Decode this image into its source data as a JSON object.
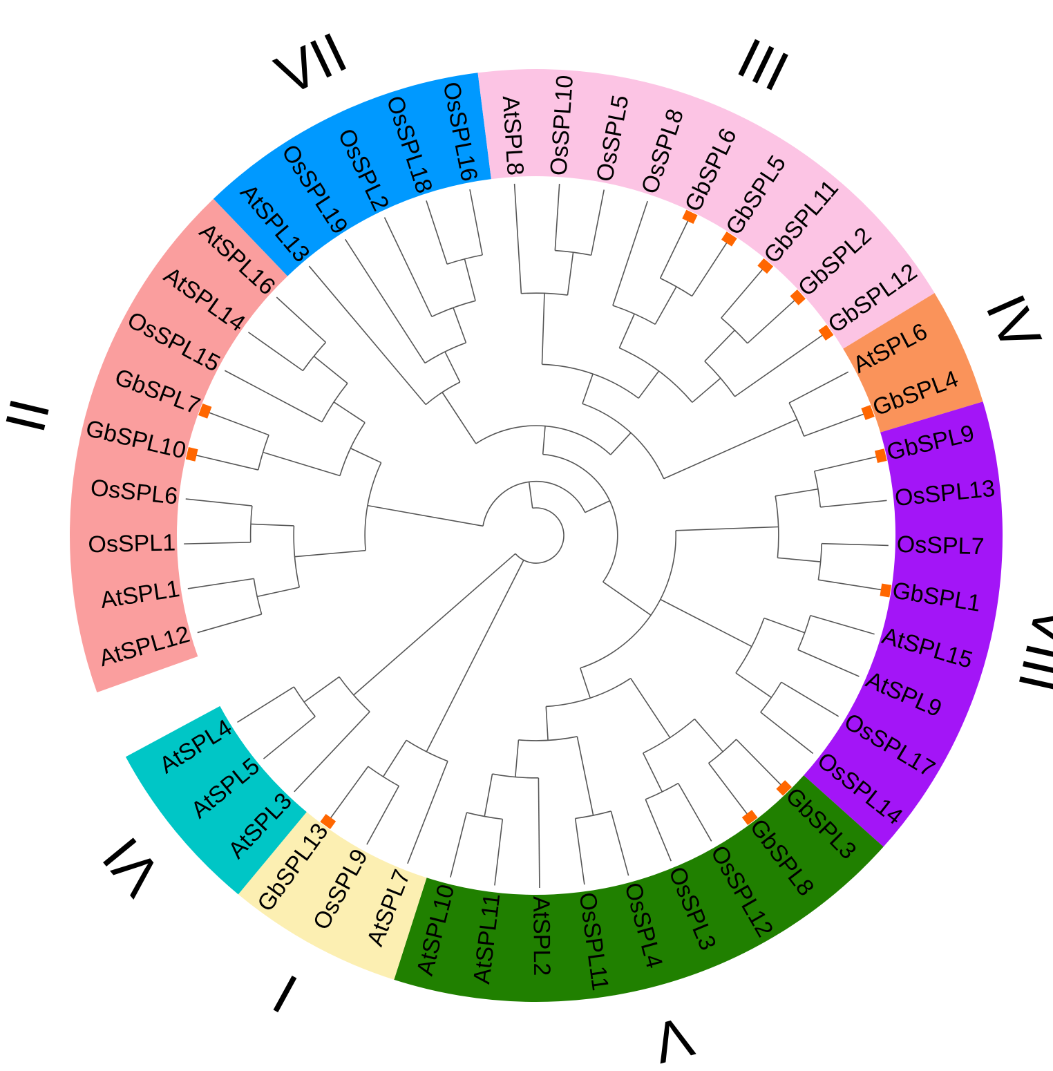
{
  "groups": [
    {
      "id": "I",
      "label": "I",
      "color": "#fcefb2"
    },
    {
      "id": "II",
      "label": "II",
      "color": "#fa9e9e"
    },
    {
      "id": "III",
      "label": "III",
      "color": "#fcc4e4"
    },
    {
      "id": "IV",
      "label": "IV",
      "color": "#fa935a"
    },
    {
      "id": "V",
      "label": "V",
      "color": "#208000"
    },
    {
      "id": "VI",
      "label": "VI",
      "color": "#00c6c6"
    },
    {
      "id": "VII",
      "label": "VII",
      "color": "#0099ff"
    },
    {
      "id": "VIII",
      "label": "VIII",
      "color": "#a315f7"
    }
  ],
  "leaves": [
    {
      "name": "AtSPL12",
      "group": "II",
      "marked": false
    },
    {
      "name": "AtSPL1",
      "group": "II",
      "marked": false
    },
    {
      "name": "OsSPL1",
      "group": "II",
      "marked": false
    },
    {
      "name": "OsSPL6",
      "group": "II",
      "marked": false
    },
    {
      "name": "GbSPL10",
      "group": "II",
      "marked": true
    },
    {
      "name": "GbSPL7",
      "group": "II",
      "marked": true
    },
    {
      "name": "OsSPL15",
      "group": "II",
      "marked": false
    },
    {
      "name": "AtSPL14",
      "group": "II",
      "marked": false
    },
    {
      "name": "AtSPL16",
      "group": "II",
      "marked": false
    },
    {
      "name": "AtSPL13",
      "group": "VII",
      "marked": false
    },
    {
      "name": "OsSPL19",
      "group": "VII",
      "marked": false
    },
    {
      "name": "OsSPL2",
      "group": "VII",
      "marked": false
    },
    {
      "name": "OsSPL18",
      "group": "VII",
      "marked": false
    },
    {
      "name": "OsSPL16",
      "group": "VII",
      "marked": false
    },
    {
      "name": "AtSPL8",
      "group": "III",
      "marked": false
    },
    {
      "name": "OsSPL10",
      "group": "III",
      "marked": false
    },
    {
      "name": "OsSPL5",
      "group": "III",
      "marked": false
    },
    {
      "name": "OsSPL8",
      "group": "III",
      "marked": false
    },
    {
      "name": "GbSPL6",
      "group": "III",
      "marked": true
    },
    {
      "name": "GbSPL5",
      "group": "III",
      "marked": true
    },
    {
      "name": "GbSPL11",
      "group": "III",
      "marked": true
    },
    {
      "name": "GbSPL2",
      "group": "III",
      "marked": true
    },
    {
      "name": "GbSPL12",
      "group": "III",
      "marked": true
    },
    {
      "name": "AtSPL6",
      "group": "IV",
      "marked": false
    },
    {
      "name": "GbSPL4",
      "group": "IV",
      "marked": true
    },
    {
      "name": "GbSPL9",
      "group": "VIII",
      "marked": true
    },
    {
      "name": "OsSPL13",
      "group": "VIII",
      "marked": false
    },
    {
      "name": "OsSPL7",
      "group": "VIII",
      "marked": false
    },
    {
      "name": "GbSPL1",
      "group": "VIII",
      "marked": true
    },
    {
      "name": "AtSPL15",
      "group": "VIII",
      "marked": false
    },
    {
      "name": "AtSPL9",
      "group": "VIII",
      "marked": false
    },
    {
      "name": "OsSPL17",
      "group": "VIII",
      "marked": false
    },
    {
      "name": "OsSPL14",
      "group": "VIII",
      "marked": false
    },
    {
      "name": "GbSPL3",
      "group": "V",
      "marked": true
    },
    {
      "name": "GbSPL8",
      "group": "V",
      "marked": true
    },
    {
      "name": "OsSPL12",
      "group": "V",
      "marked": false
    },
    {
      "name": "OsSPL3",
      "group": "V",
      "marked": false
    },
    {
      "name": "OsSPL4",
      "group": "V",
      "marked": false
    },
    {
      "name": "OsSPL11",
      "group": "V",
      "marked": false
    },
    {
      "name": "AtSPL2",
      "group": "V",
      "marked": false
    },
    {
      "name": "AtSPL11",
      "group": "V",
      "marked": false
    },
    {
      "name": "AtSPL10",
      "group": "V",
      "marked": false
    },
    {
      "name": "AtSPL7",
      "group": "I",
      "marked": false
    },
    {
      "name": "OsSPL9",
      "group": "I",
      "marked": false
    },
    {
      "name": "GbSPL13",
      "group": "I",
      "marked": true
    },
    {
      "name": "AtSPL3",
      "group": "VI",
      "marked": false
    },
    {
      "name": "AtSPL5",
      "group": "VI",
      "marked": false
    },
    {
      "name": "AtSPL4",
      "group": "VI",
      "marked": false
    }
  ],
  "tree": [
    "root",
    [
      "AtSPL7",
      [
        "OsSPL9",
        "GbSPL13"
      ]
    ],
    [
      "AtSPL3",
      [
        "AtSPL5",
        "AtSPL4"
      ]
    ],
    [
      [
        [
          [
            "AtSPL12",
            "AtSPL1"
          ],
          [
            "OsSPL1",
            "OsSPL6"
          ]
        ],
        [
          [
            "GbSPL10",
            "GbSPL7"
          ],
          [
            "OsSPL15",
            [
              "AtSPL14",
              "AtSPL16"
            ]
          ]
        ]
      ],
      [
        [
          [
            "AtSPL13",
            [
              "OsSPL19",
              [
                "OsSPL2",
                [
                  "OsSPL18",
                  "OsSPL16"
                ]
              ]
            ]
          ],
          [
            [
              [
                "AtSPL8",
                [
                  "OsSPL10",
                  "OsSPL5"
                ]
              ],
              [
                [
                  "OsSPL8",
                  [
                    "GbSPL6",
                    "GbSPL5"
                  ]
                ],
                [
                  [
                    "GbSPL11",
                    "GbSPL2"
                  ],
                  "GbSPL12"
                ]
              ]
            ],
            [
              "AtSPL6",
              "GbSPL4"
            ]
          ]
        ],
        [
          [
            [
              "GbSPL9",
              "OsSPL13"
            ],
            [
              "OsSPL7",
              "GbSPL1"
            ]
          ],
          [
            [
              "AtSPL15",
              "AtSPL9"
            ],
            [
              "OsSPL17",
              "OsSPL14"
            ]
          ],
          [
            [
              [
                "GbSPL3",
                "GbSPL8"
              ],
              [
                "OsSPL12",
                "OsSPL3"
              ]
            ],
            [
              [
                "OsSPL4",
                "OsSPL11"
              ],
              [
                "AtSPL2",
                [
                  "AtSPL11",
                  "AtSPL10"
                ]
              ]
            ]
          ]
        ]
      ]
    ]
  ]
}
